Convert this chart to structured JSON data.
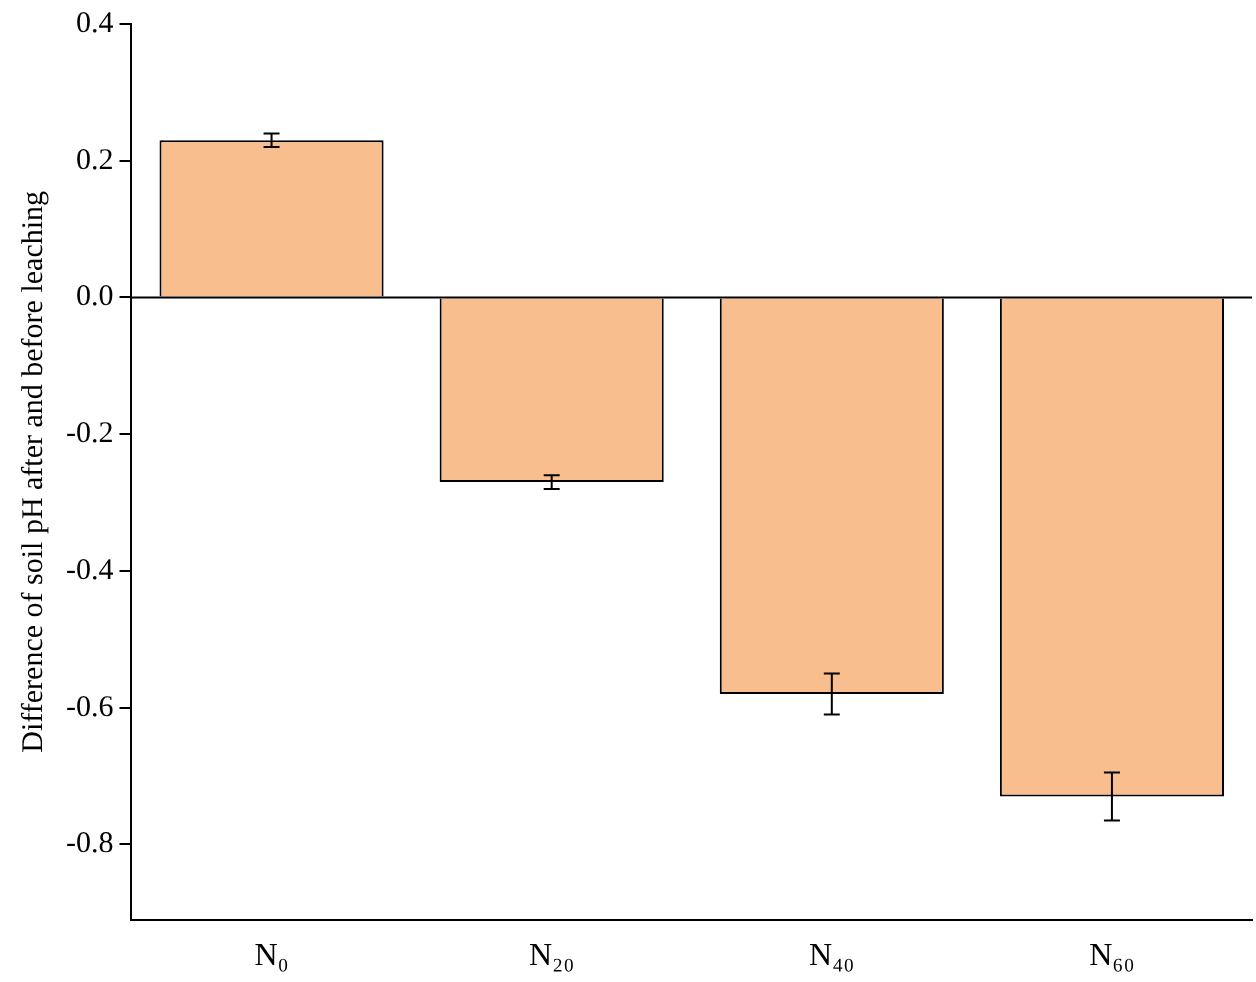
{
  "chart_data": {
    "type": "bar",
    "ylabel": "Difference of soil pH after and before leaching",
    "categories": [
      "N₀",
      "N₂₀",
      "N₄₀",
      "N₆₀"
    ],
    "values": [
      0.23,
      -0.27,
      -0.58,
      -0.73
    ],
    "errors": [
      0.01,
      0.01,
      0.03,
      0.035
    ],
    "color": "#f9be8e",
    "ylim": [
      -0.91,
      0.4
    ],
    "yticks": [
      -0.8,
      -0.6,
      -0.4,
      -0.2,
      {
        "value": 0,
        "label": "0.0"
      },
      0.2,
      0.4
    ],
    "ref_lines": [
      {
        "axis": "y",
        "value": 0
      }
    ],
    "grid": false,
    "legend": false
  }
}
